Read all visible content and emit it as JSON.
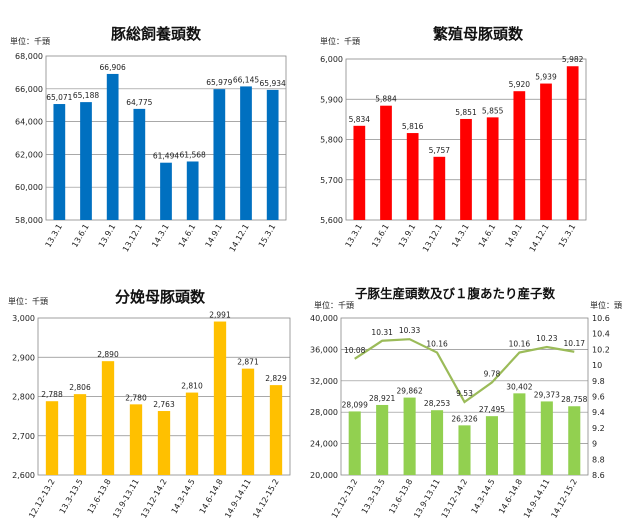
{
  "chart_data": [
    {
      "type": "bar",
      "title": "豚総飼養頭数",
      "unit_label": "単位：千頭",
      "categories": [
        "13.3.1",
        "13.6.1",
        "13.9.1",
        "13.12.1",
        "14.3.1",
        "14.6.1",
        "14.9.1",
        "14.12.1",
        "15.3.1"
      ],
      "values": [
        65071,
        65188,
        66906,
        64775,
        61494,
        61568,
        65979,
        66145,
        65934
      ],
      "data_labels": [
        "65,071",
        "65,188",
        "66,906",
        "64,775",
        "61,494",
        "61,568",
        "65,979",
        "66,145",
        "65,934"
      ],
      "ylim": [
        58000,
        68000
      ],
      "y_ticks": [
        "58,000",
        "60,000",
        "62,000",
        "64,000",
        "66,000",
        "68,000"
      ],
      "grid": true,
      "color": "#0070C0"
    },
    {
      "type": "bar",
      "title": "繁殖母豚頭数",
      "unit_label": "単位：千頭",
      "categories": [
        "13.3.1",
        "13.6.1",
        "13.9.1",
        "13.12.1",
        "14.3.1",
        "14.6.1",
        "14.9.1",
        "14.12.1",
        "15.3.1"
      ],
      "values": [
        5834,
        5884,
        5816,
        5757,
        5851,
        5855,
        5920,
        5939,
        5982
      ],
      "data_labels": [
        "5,834",
        "5,884",
        "5,816",
        "5,757",
        "5,851",
        "5,855",
        "5,920",
        "5,939",
        "5,982"
      ],
      "ylim": [
        5600,
        6000
      ],
      "y_ticks": [
        "5,600",
        "5,700",
        "5,800",
        "5,900",
        "6,000"
      ],
      "grid": true,
      "color": "#FF0000"
    },
    {
      "type": "bar",
      "title": "分娩母豚頭数",
      "unit_label": "単位：千頭",
      "categories": [
        "12.12-13.2",
        "13.3-13.5",
        "13.6-13.8",
        "13.9-13.11",
        "13.12-14.2",
        "14.3-14.5",
        "14.6-14.8",
        "14.9-14.11",
        "14.12-15.2"
      ],
      "values": [
        2788,
        2806,
        2890,
        2780,
        2763,
        2810,
        2991,
        2871,
        2829
      ],
      "data_labels": [
        "2,788",
        "2,806",
        "2,890",
        "2,780",
        "2,763",
        "2,810",
        "2,991",
        "2,871",
        "2,829"
      ],
      "ylim": [
        2600,
        3000
      ],
      "y_ticks": [
        "2,600",
        "2,700",
        "2,800",
        "2,900",
        "3,000"
      ],
      "grid": true,
      "color": "#FFC000"
    },
    {
      "type": "bar+line",
      "title": "子豚生産頭数及び１腹あたり産子数",
      "unit_label_left": "単位：千頭",
      "unit_label_right": "単位：頭",
      "categories": [
        "12.12-13.2",
        "13.3-13.5",
        "13.6-13.8",
        "13.9-13.11",
        "13.12-14.2",
        "14.3-14.5",
        "14.6-14.8",
        "14.9-14.11",
        "14.12-15.2"
      ],
      "series": [
        {
          "name": "子豚生産頭数",
          "axis": "left",
          "kind": "bar",
          "values": [
            28099,
            28921,
            29862,
            28253,
            26326,
            27495,
            30402,
            29373,
            28758
          ],
          "data_labels": [
            "28,099",
            "28,921",
            "29,862",
            "28,253",
            "26,326",
            "27,495",
            "30,402",
            "29,373",
            "28,758"
          ],
          "color": "#92D050"
        },
        {
          "name": "１腹あたり産子数",
          "axis": "right",
          "kind": "line",
          "values": [
            10.08,
            10.31,
            10.33,
            10.16,
            9.53,
            9.78,
            10.16,
            10.23,
            10.17
          ],
          "data_labels": [
            "10.08",
            "10.31",
            "10.33",
            "10.16",
            "9.53",
            "9.78",
            "10.16",
            "10.23",
            "10.17"
          ],
          "color": "#9BBB59"
        }
      ],
      "ylim": [
        20000,
        40000
      ],
      "y_ticks": [
        "20,000",
        "24,000",
        "28,000",
        "32,000",
        "36,000",
        "40,000"
      ],
      "y2lim": [
        8.6,
        10.6
      ],
      "y2_ticks": [
        "8.6",
        "8.8",
        "9",
        "9.2",
        "9.4",
        "9.6",
        "9.8",
        "10",
        "10.2",
        "10.4",
        "10.6"
      ],
      "grid": true
    }
  ]
}
